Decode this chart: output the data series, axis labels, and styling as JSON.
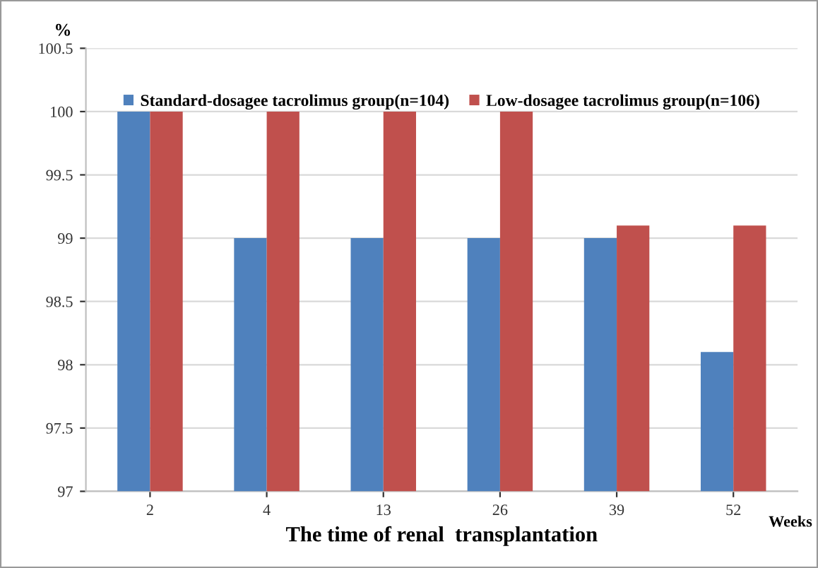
{
  "chart_data": {
    "type": "bar",
    "ylabel": "%",
    "xlabel": "The time of renal  transplantation",
    "annotations": [
      "Weeks"
    ],
    "categories": [
      "2",
      "4",
      "13",
      "26",
      "39",
      "52"
    ],
    "series": [
      {
        "name": "Standard-dosagee tacrolimus group(n=104)",
        "color": "#4f81bd",
        "values": [
          100,
          99,
          99,
          99,
          99,
          98.1
        ]
      },
      {
        "name": "Low-dosagee tacrolimus group(n=106)",
        "color": "#c0504d",
        "values": [
          100,
          100,
          100,
          100,
          99.1,
          99.1
        ]
      }
    ],
    "ylim": [
      97,
      100.5
    ],
    "yticks": [
      97,
      97.5,
      98,
      98.5,
      99,
      99.5,
      100,
      100.5
    ],
    "grid": "y",
    "legend": "top"
  }
}
